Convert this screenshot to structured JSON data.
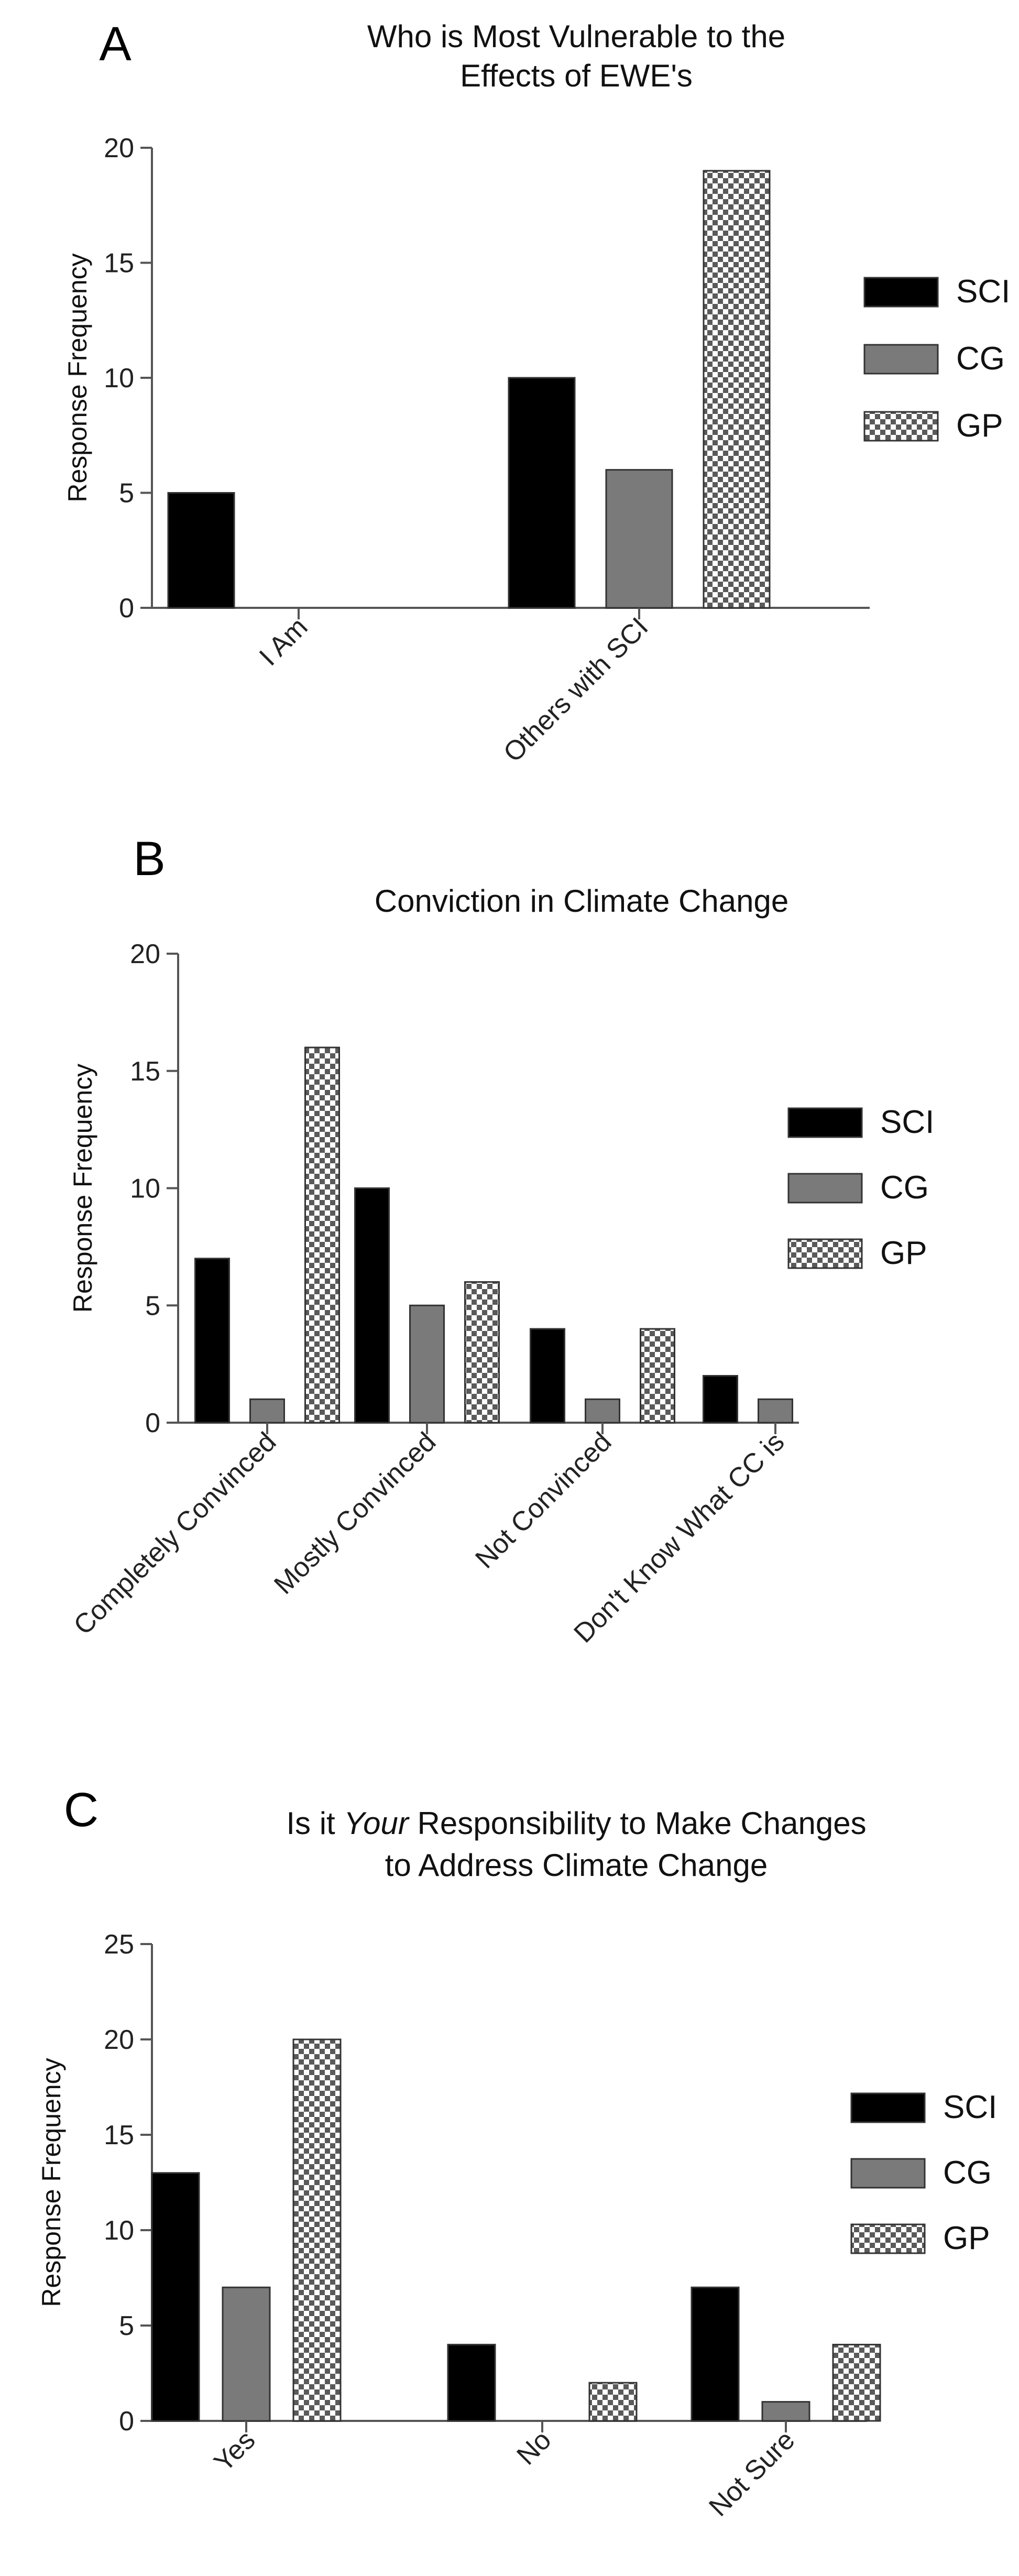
{
  "chart_data": [
    {
      "type": "bar",
      "panel": "A",
      "title_lines": [
        "Who is Most Vulnerable to the",
        "Effects of EWE's"
      ],
      "ylabel": "Response Frequency",
      "xlabel": "",
      "ylim": [
        0,
        20
      ],
      "yticks": [
        0,
        5,
        10,
        15,
        20
      ],
      "categories": [
        "I Am",
        "Others with SCI"
      ],
      "series": [
        {
          "name": "SCI",
          "values": [
            5,
            10
          ]
        },
        {
          "name": "CG",
          "values": [
            0,
            6
          ]
        },
        {
          "name": "GP",
          "values": [
            0,
            19
          ]
        }
      ],
      "legend_position": "right",
      "grid": false
    },
    {
      "type": "bar",
      "panel": "B",
      "title_lines": [
        "Conviction in Climate Change"
      ],
      "ylabel": "Response Frequency",
      "xlabel": "",
      "ylim": [
        0,
        20
      ],
      "yticks": [
        0,
        5,
        10,
        15,
        20
      ],
      "categories": [
        "Completely Convinced",
        "Mostly Convinced",
        "Not Convinced",
        "Don't Know What CC is"
      ],
      "series": [
        {
          "name": "SCI",
          "values": [
            7,
            10,
            4,
            2
          ]
        },
        {
          "name": "CG",
          "values": [
            1,
            5,
            1,
            1
          ]
        },
        {
          "name": "GP",
          "values": [
            16,
            6,
            4,
            0
          ]
        }
      ],
      "legend_position": "right",
      "grid": false
    },
    {
      "type": "bar",
      "panel": "C",
      "title_lines": [
        "Is it |Your| Responsibility to  Make Changes",
        "to Address Climate Change"
      ],
      "ylabel": "Response Frequency",
      "xlabel": "",
      "ylim": [
        0,
        25
      ],
      "yticks": [
        0,
        5,
        10,
        15,
        20,
        25
      ],
      "categories": [
        "Yes",
        "No",
        "Not Sure"
      ],
      "series": [
        {
          "name": "SCI",
          "values": [
            13,
            4,
            7
          ]
        },
        {
          "name": "CG",
          "values": [
            7,
            0,
            1
          ]
        },
        {
          "name": "GP",
          "values": [
            20,
            2,
            4
          ]
        }
      ],
      "legend_position": "right",
      "grid": false
    }
  ],
  "colors": {
    "SCI": "#000000",
    "CG": "#7a7a7a",
    "GP_light": "#ffffff",
    "GP_dark": "#5a5a5a"
  }
}
